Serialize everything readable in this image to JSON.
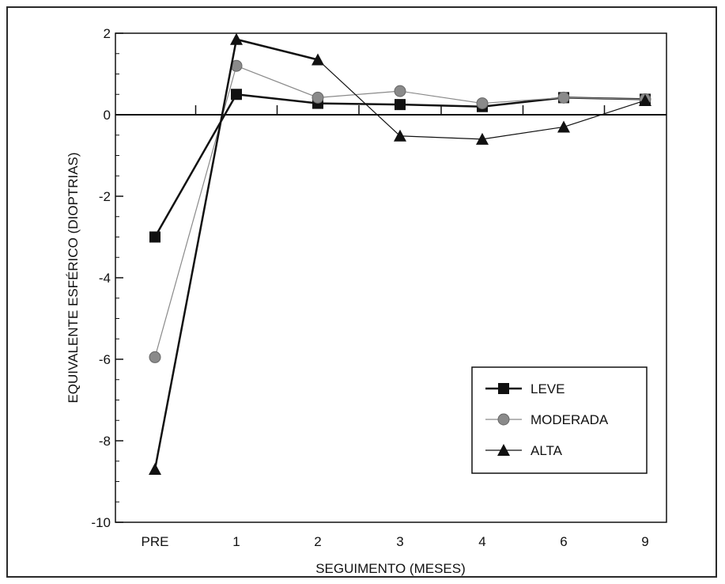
{
  "chart_data": {
    "type": "line",
    "categories": [
      "PRE",
      "1",
      "2",
      "3",
      "4",
      "6",
      "9"
    ],
    "xlabel": "SEGUIMENTO (MESES)",
    "ylabel": "EQUIVALENTE ESFÉRICO (DIOPTRIAS)",
    "ylim": [
      -10,
      2
    ],
    "yticks": [
      2,
      0,
      -2,
      -4,
      -6,
      -8,
      -10
    ],
    "grid": false,
    "legend_position": "bottom-right",
    "series": [
      {
        "name": "LEVE",
        "marker": "square",
        "color": "#111111",
        "stroke_width": 2.5,
        "values": [
          -3.0,
          0.5,
          0.28,
          0.25,
          0.2,
          0.42,
          0.38
        ]
      },
      {
        "name": "MODERADA",
        "marker": "circle",
        "color": "#8a8a8a",
        "stroke_width": 1.2,
        "values": [
          -5.95,
          1.2,
          0.42,
          0.58,
          0.28,
          0.42,
          0.38
        ]
      },
      {
        "name": "ALTA",
        "marker": "triangle",
        "color": "#111111",
        "stroke_width": 1.2,
        "bold_segments": [
          0,
          1
        ],
        "values": [
          -8.7,
          1.85,
          1.35,
          -0.52,
          -0.6,
          -0.3,
          0.35
        ]
      }
    ]
  }
}
